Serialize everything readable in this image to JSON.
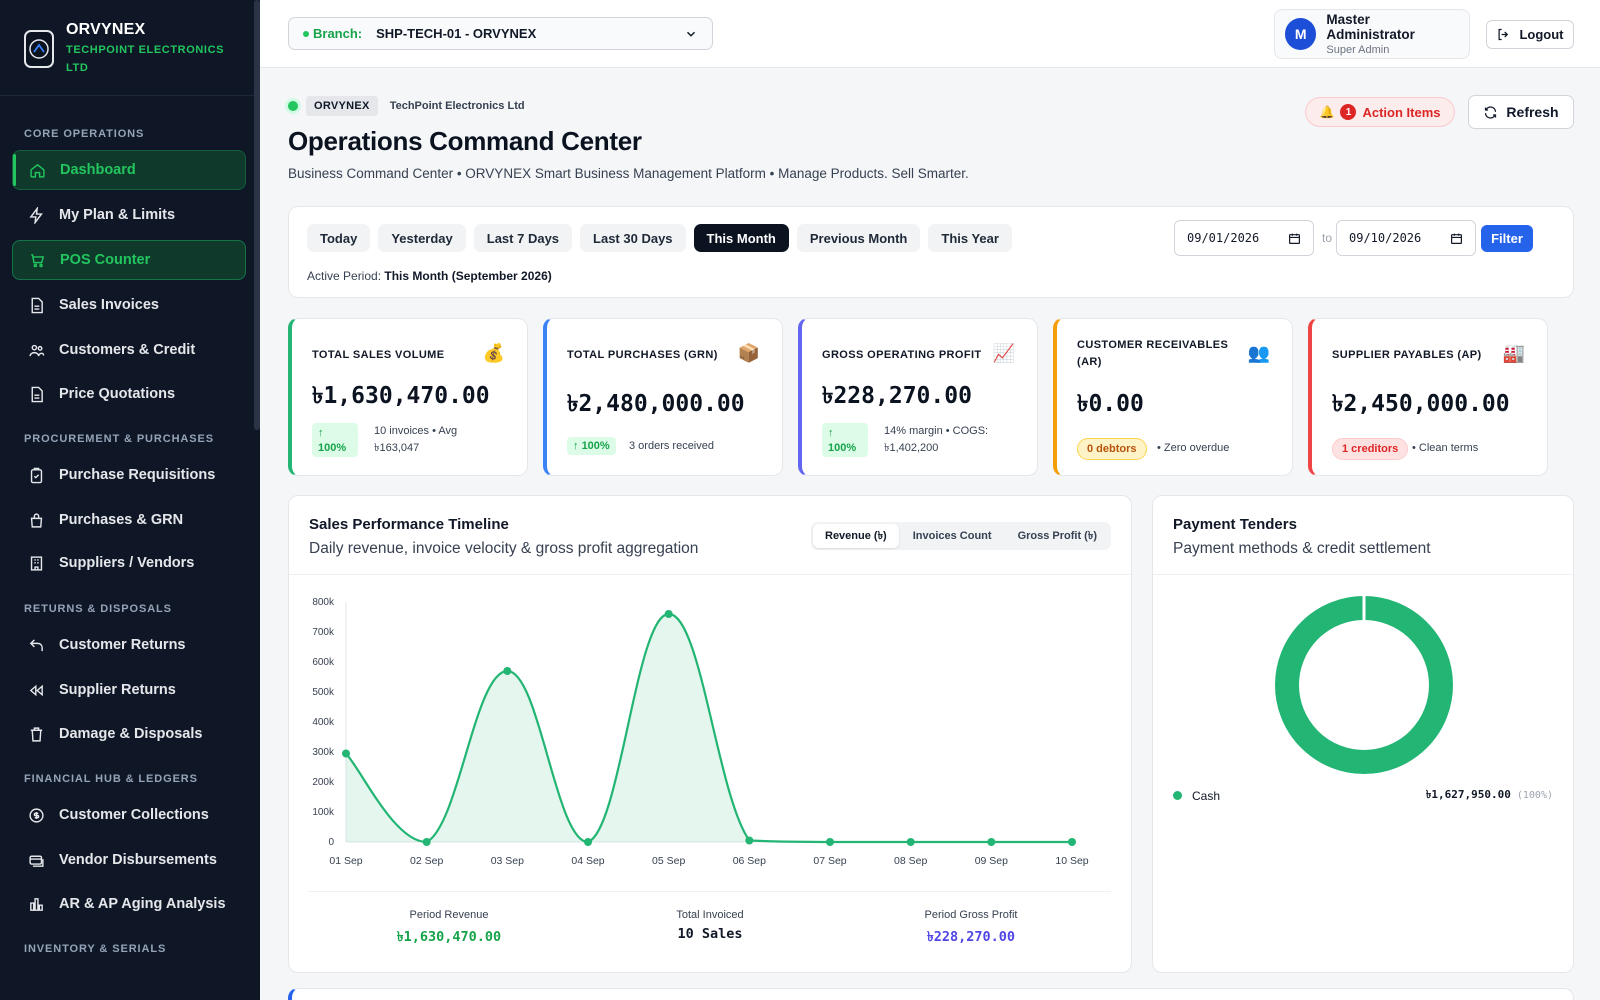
{
  "brand": {
    "name": "ORVYNEX",
    "subtitle": "TECHPOINT ELECTRONICS LTD"
  },
  "sidebar": {
    "sections": [
      "CORE OPERATIONS",
      "PROCUREMENT & PURCHASES",
      "RETURNS & DISPOSALS",
      "FINANCIAL HUB & LEDGERS",
      "INVENTORY & SERIALS"
    ],
    "items": [
      {
        "label": "Dashboard",
        "icon": "home-icon"
      },
      {
        "label": "My Plan & Limits",
        "icon": "bolt-icon"
      },
      {
        "label": "POS Counter",
        "icon": "cart-icon"
      },
      {
        "label": "Sales Invoices",
        "icon": "file-icon"
      },
      {
        "label": "Customers & Credit",
        "icon": "users-icon"
      },
      {
        "label": "Price Quotations",
        "icon": "file-icon"
      },
      {
        "label": "Purchase Requisitions",
        "icon": "clipboard-icon"
      },
      {
        "label": "Purchases & GRN",
        "icon": "bag-icon"
      },
      {
        "label": "Suppliers / Vendors",
        "icon": "building-icon"
      },
      {
        "label": "Customer Returns",
        "icon": "undo-icon"
      },
      {
        "label": "Supplier Returns",
        "icon": "rewind-icon"
      },
      {
        "label": "Damage & Disposals",
        "icon": "trash-icon"
      },
      {
        "label": "Customer Collections",
        "icon": "coin-icon"
      },
      {
        "label": "Vendor Disbursements",
        "icon": "card-icon"
      },
      {
        "label": "AR & AP Aging Analysis",
        "icon": "bar-chart-icon"
      }
    ]
  },
  "topbar": {
    "branch_label": "Branch:",
    "branch_value": "SHP-TECH-01 - ORVYNEX",
    "user_name": "Master Administrator",
    "user_role": "Super Admin",
    "avatar_initial": "M",
    "logout_label": "Logout"
  },
  "header": {
    "tag": "ORVYNEX",
    "company": "TechPoint Electronics Ltd",
    "title": "Operations Command Center",
    "subtitle": "Business Command Center • ORVYNEX Smart Business Management Platform • Manage Products. Sell Smarter.",
    "action_count": "1",
    "action_label": "Action Items",
    "refresh_label": "Refresh"
  },
  "period": {
    "chips": [
      "Today",
      "Yesterday",
      "Last 7 Days",
      "Last 30 Days",
      "This Month",
      "Previous Month",
      "This Year"
    ],
    "active_index": 4,
    "active_label": "Active Period:",
    "active_value": "This Month (September 2026)",
    "from": "09/01/2026",
    "to_label": "to",
    "to": "09/10/2026",
    "filter_label": "Filter"
  },
  "kpis": [
    {
      "label": "TOTAL SALES VOLUME",
      "value": "৳1,630,470.00",
      "badge": "100%",
      "note": "10 invoices • Avg ৳163,047",
      "color": "#22b573"
    },
    {
      "label": "TOTAL PURCHASES (GRN)",
      "value": "৳2,480,000.00",
      "badge": "100%",
      "note": "3 orders received",
      "color": "#3b82f6"
    },
    {
      "label": "GROSS OPERATING PROFIT",
      "value": "৳228,270.00",
      "badge": "100%",
      "note": "14% margin • COGS: ৳1,402,200",
      "color": "#6366f1"
    },
    {
      "label": "CUSTOMER RECEIVABLES (AR)",
      "value": "৳0.00",
      "pill": "0 debtors",
      "note": "• Zero overdue",
      "color": "#f59e0b"
    },
    {
      "label": "SUPPLIER PAYABLES (AP)",
      "value": "৳2,450,000.00",
      "pill": "1 creditors",
      "note": "• Clean terms",
      "color": "#ef4444"
    }
  ],
  "sales_chart": {
    "title": "Sales Performance Timeline",
    "subtitle": "Daily revenue, invoice velocity & gross profit aggregation",
    "tabs": [
      "Revenue (৳)",
      "Invoices Count",
      "Gross Profit (৳)"
    ],
    "active_tab": 0,
    "stats": [
      {
        "label": "Period Revenue",
        "value": "৳1,630,470.00",
        "color": "#16a34a"
      },
      {
        "label": "Total Invoiced",
        "value": "10 Sales",
        "color": "#111827"
      },
      {
        "label": "Period Gross Profit",
        "value": "৳228,270.00",
        "color": "#4f46e5"
      }
    ]
  },
  "chart_data": {
    "type": "area",
    "categories": [
      "01 Sep",
      "02 Sep",
      "03 Sep",
      "04 Sep",
      "05 Sep",
      "06 Sep",
      "07 Sep",
      "08 Sep",
      "09 Sep",
      "10 Sep"
    ],
    "values": [
      295000,
      0,
      570000,
      0,
      760000,
      5000,
      0,
      0,
      0,
      0
    ],
    "ylim": [
      0,
      800000
    ],
    "yticks": [
      "0",
      "100k",
      "200k",
      "300k",
      "400k",
      "500k",
      "600k",
      "700k",
      "800k"
    ],
    "color": "#22b573"
  },
  "tenders": {
    "title": "Payment Tenders",
    "subtitle": "Payment methods & credit settlement",
    "items": [
      {
        "name": "Cash",
        "value": "৳1,627,950.00",
        "pct": "(100%)",
        "color": "#22b573"
      }
    ]
  }
}
